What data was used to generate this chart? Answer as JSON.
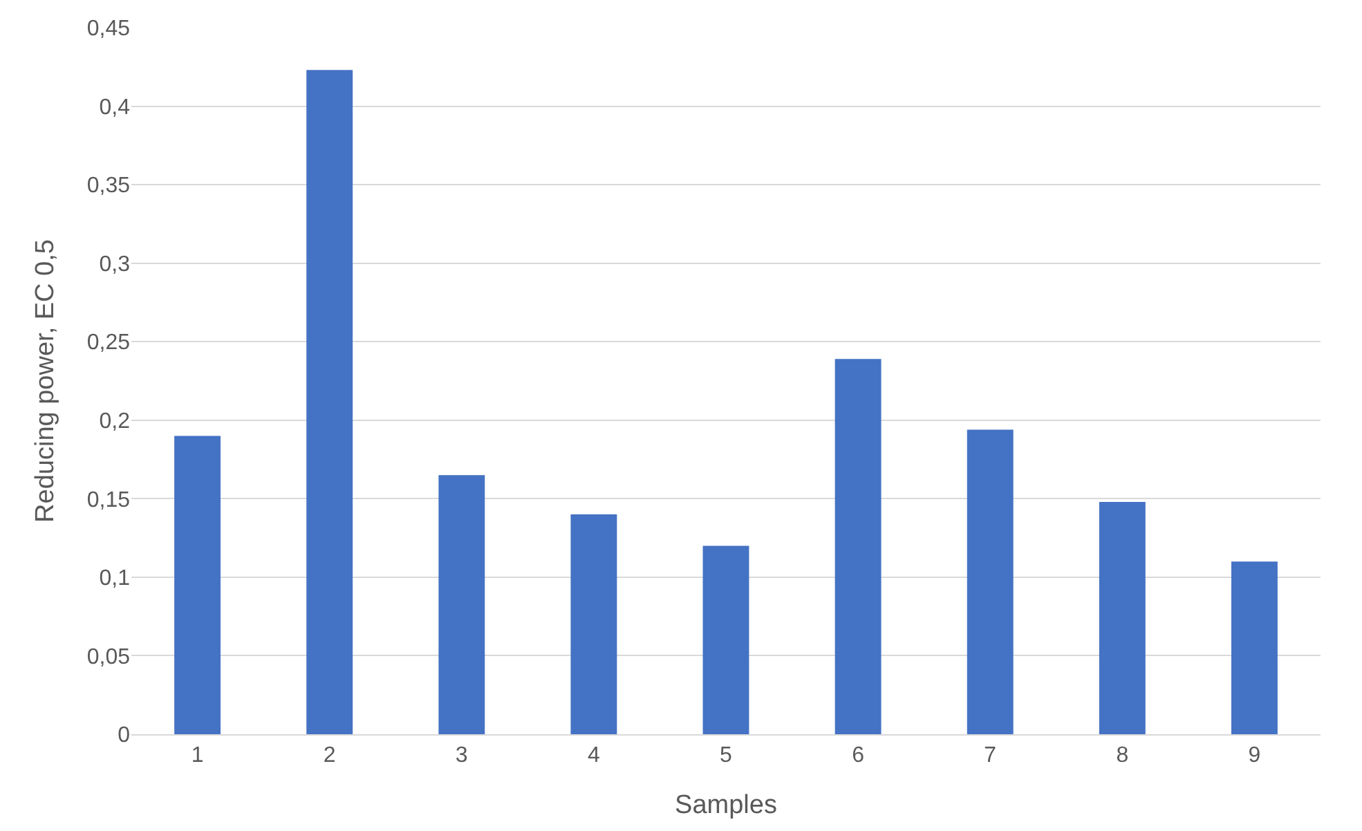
{
  "chart_data": {
    "type": "bar",
    "xlabel": "Samples",
    "ylabel": "Reducing power, EC 0,5",
    "categories": [
      "1",
      "2",
      "3",
      "4",
      "5",
      "6",
      "7",
      "8",
      "9"
    ],
    "values": [
      0.19,
      0.423,
      0.165,
      0.14,
      0.12,
      0.239,
      0.194,
      0.148,
      0.11
    ],
    "color": "#4472c4",
    "ylim": [
      0,
      0.45
    ],
    "yticks": [
      0,
      {
        "value": 0.05,
        "label": "0,05"
      },
      {
        "value": 0.1,
        "label": "0,1"
      },
      {
        "value": 0.15,
        "label": "0,15"
      },
      {
        "value": 0.2,
        "label": "0,2"
      },
      {
        "value": 0.25,
        "label": "0,25"
      },
      {
        "value": 0.3,
        "label": "0,3"
      },
      {
        "value": 0.35,
        "label": "0,35"
      },
      {
        "value": 0.4,
        "label": "0,4"
      },
      {
        "value": 0.45,
        "label": "0,45"
      }
    ],
    "grid": "y",
    "legend": false
  }
}
